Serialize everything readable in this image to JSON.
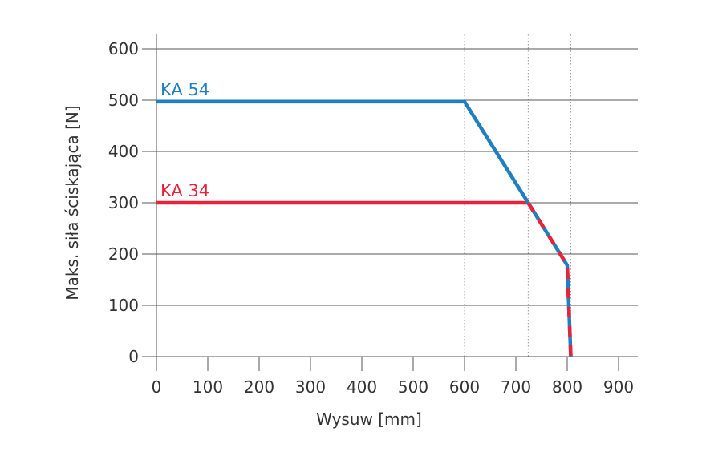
{
  "chart_data": {
    "type": "line",
    "xlabel": "Wysuw [mm]",
    "ylabel": "Maks. siła ściskająca [N]",
    "xlim": [
      0,
      930
    ],
    "ylim": [
      0,
      600
    ],
    "x_ticks": [
      "0",
      "100",
      "200",
      "300",
      "400",
      "500",
      "600",
      "700",
      "800",
      "900"
    ],
    "y_ticks": [
      "0",
      "100",
      "200",
      "300",
      "400",
      "500",
      "600"
    ],
    "grid": "horizontal",
    "reference_lines_x": [
      600,
      724,
      807
    ],
    "series": [
      {
        "name": "KA 54",
        "color": "#1f7fc1",
        "points": [
          [
            0,
            497
          ],
          [
            600,
            497
          ],
          [
            724,
            300
          ],
          [
            800,
            178
          ],
          [
            807,
            0
          ]
        ]
      },
      {
        "name": "KA 34",
        "color": "#e8223a",
        "dashed_from_x": 724,
        "points": [
          [
            0,
            300
          ],
          [
            724,
            300
          ],
          [
            800,
            178
          ],
          [
            807,
            0
          ]
        ]
      }
    ]
  }
}
